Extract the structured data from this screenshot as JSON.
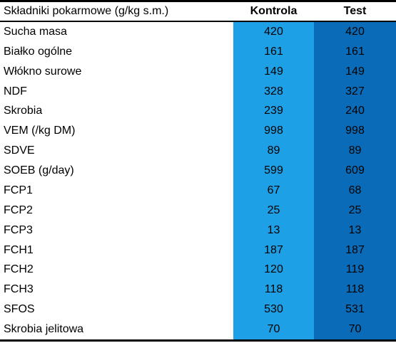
{
  "header": {
    "name": "Składniki pokarmowe (g/kg s.m.)",
    "kontrola": "Kontrola",
    "test": "Test"
  },
  "rows": [
    {
      "name": "Sucha masa",
      "kontrola": "420",
      "test": "420"
    },
    {
      "name": "Białko ogólne",
      "kontrola": "161",
      "test": "161"
    },
    {
      "name": "Włókno surowe",
      "kontrola": "149",
      "test": "149"
    },
    {
      "name": "NDF",
      "kontrola": "328",
      "test": "327"
    },
    {
      "name": "Skrobia",
      "kontrola": "239",
      "test": "240"
    },
    {
      "name": "VEM (/kg DM)",
      "kontrola": "998",
      "test": "998"
    },
    {
      "name": "SDVE",
      "kontrola": "89",
      "test": "89"
    },
    {
      "name": "SOEB (g/day)",
      "kontrola": "599",
      "test": "609"
    },
    {
      "name": "FCP1",
      "kontrola": "67",
      "test": "68"
    },
    {
      "name": "FCP2",
      "kontrola": "25",
      "test": "25"
    },
    {
      "name": "FCP3",
      "kontrola": "13",
      "test": "13"
    },
    {
      "name": "FCH1",
      "kontrola": "187",
      "test": "187"
    },
    {
      "name": "FCH2",
      "kontrola": "120",
      "test": "119"
    },
    {
      "name": "FCH3",
      "kontrola": "118",
      "test": "118"
    },
    {
      "name": "SFOS",
      "kontrola": "530",
      "test": "531"
    },
    {
      "name": "Skrobia jelitowa",
      "kontrola": "70",
      "test": "70"
    }
  ],
  "colors": {
    "kontrola_column": "#1ea0e6",
    "test_column": "#0a6cb8"
  }
}
